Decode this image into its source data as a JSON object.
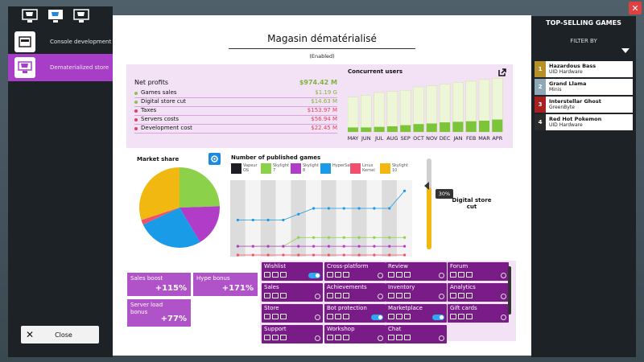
{
  "left_nav": {
    "items": [
      {
        "label": "Console development",
        "icon": "console-icon"
      },
      {
        "label": "Dematerialized store",
        "icon": "store-cart-icon"
      }
    ],
    "close_label": "Close"
  },
  "dialog": {
    "title": "Magasin dématérialisé",
    "status": "(Enabled)",
    "finance": {
      "net_profits_label": "Net profits",
      "net_profits_value": "$974.42 M",
      "rows": [
        {
          "label": "Games sales",
          "value": "$1.19 G",
          "color": "#8bc34a"
        },
        {
          "label": "Digital store cut",
          "value": "$14.63 M",
          "color": "#8bc34a"
        },
        {
          "label": "Taxes",
          "value": "$153.97 M",
          "color": "#e0405a"
        },
        {
          "label": "Servers costs",
          "value": "$56.94 M",
          "color": "#e0405a"
        },
        {
          "label": "Development cost",
          "value": "$22.45 M",
          "color": "#e0405a"
        }
      ]
    },
    "concurrent_users": {
      "title": "Concurrent users",
      "months": [
        "MAY",
        "JUN",
        "JUL",
        "AUG",
        "SEP",
        "OCT",
        "NOV",
        "DEC",
        "JAN",
        "FEB",
        "MAR",
        "APR"
      ],
      "total": [
        0.62,
        0.65,
        0.7,
        0.72,
        0.74,
        0.8,
        0.82,
        0.85,
        0.88,
        0.9,
        0.93,
        0.95
      ],
      "green": [
        0.08,
        0.08,
        0.09,
        0.1,
        0.12,
        0.14,
        0.15,
        0.17,
        0.18,
        0.19,
        0.2,
        0.22
      ]
    },
    "market_share": {
      "title": "Market share",
      "slices": [
        {
          "name": "Skylight 7",
          "value": 0.245,
          "color": "#8bd24a"
        },
        {
          "name": "Skylight 8",
          "value": 0.17,
          "color": "#b03cc8"
        },
        {
          "name": "HyperSafe",
          "value": 0.265,
          "color": "#1a9be8"
        },
        {
          "name": "Linux Kernel",
          "value": 0.02,
          "color": "#f0506e"
        },
        {
          "name": "Skylight 10",
          "value": 0.3,
          "color": "#f0b810"
        }
      ]
    },
    "published_games": {
      "title": "Number of published games",
      "legend": [
        {
          "name": "Vapeur OS",
          "color": "#1d1d26"
        },
        {
          "name": "Skylight 7",
          "color": "#8bd24a"
        },
        {
          "name": "Skylight 8",
          "color": "#b03cc8"
        },
        {
          "name": "HyperSafe",
          "color": "#1a9be8"
        },
        {
          "name": "Linux Kernel",
          "color": "#f0506e"
        },
        {
          "name": "Skylight 10",
          "color": "#f0b810"
        }
      ],
      "series": [
        {
          "color": "#1a9be8",
          "values": [
            12,
            12,
            12,
            12,
            14,
            16,
            16,
            16,
            16,
            16,
            16,
            22
          ]
        },
        {
          "color": "#8bd24a",
          "values": [
            3,
            3,
            3,
            3,
            6,
            6,
            6,
            6,
            6,
            6,
            6,
            6
          ]
        },
        {
          "color": "#b03cc8",
          "values": [
            3,
            3,
            3,
            3,
            3,
            3,
            3,
            3,
            3,
            3,
            3,
            3
          ]
        },
        {
          "color": "#f0506e",
          "values": [
            0,
            0,
            0,
            0,
            0,
            0,
            0,
            0,
            0,
            0,
            0,
            0
          ]
        }
      ],
      "ymax": 24
    },
    "store_cut": {
      "value": "30%",
      "label": "Digital store cut",
      "fraction": 0.3
    },
    "boosts": [
      {
        "name": "Sales boost",
        "value": "+115%"
      },
      {
        "name": "Hype bonus",
        "value": "+171%"
      },
      {
        "name": "Server load bonus",
        "value": "+77%"
      }
    ],
    "features": [
      {
        "name": "Wishlist",
        "toggle": true
      },
      {
        "name": "Cross-platform",
        "toggle": false
      },
      {
        "name": "Review",
        "toggle": false
      },
      {
        "name": "Forum",
        "toggle": false
      },
      {
        "name": "Sales",
        "toggle": false
      },
      {
        "name": "Achievements",
        "toggle": false
      },
      {
        "name": "Inventory",
        "toggle": false
      },
      {
        "name": "Analytics",
        "toggle": false
      },
      {
        "name": "Store",
        "toggle": false
      },
      {
        "name": "Bot protection",
        "toggle": true
      },
      {
        "name": "Marketplace",
        "toggle": true
      },
      {
        "name": "Gift cards",
        "toggle": false
      },
      {
        "name": "Support",
        "toggle": false
      },
      {
        "name": "Workshop",
        "toggle": false
      },
      {
        "name": "Chat",
        "toggle": false
      }
    ]
  },
  "top_selling": {
    "title": "TOP-SELLING GAMES",
    "filter_label": "FILTER BY",
    "items": [
      {
        "rank": "1",
        "name": "Hazardous Bass",
        "studio": "UID Hardware",
        "color": "#b8902a"
      },
      {
        "rank": "2",
        "name": "Grand Llama",
        "studio": "Minis",
        "color": "#8fa8b8"
      },
      {
        "rank": "3",
        "name": "Interstellar Ghost",
        "studio": "GreenByte",
        "color": "#a82020"
      },
      {
        "rank": "4",
        "name": "Red Hot Pokemon",
        "studio": "UID Hardware",
        "color": "#2a2a2a"
      }
    ]
  }
}
